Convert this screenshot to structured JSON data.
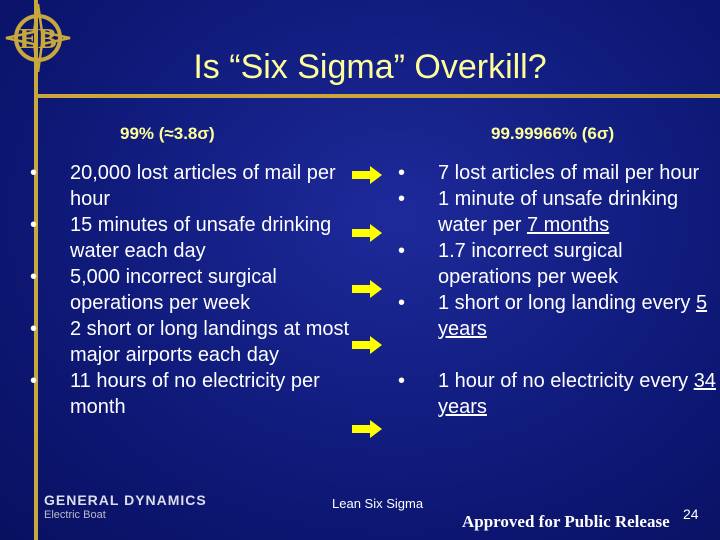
{
  "title": "Is “Six Sigma” Overkill?",
  "left_heading": "99% (≈3.8σ)",
  "right_heading": "99.99966% (6σ)",
  "left_items": [
    "20,000 lost articles of mail per hour",
    "15 minutes of unsafe drinking water each day",
    "5,000 incorrect surgical operations per week",
    "2 short or long landings at most major airports each day",
    "11 hours of no electricity per month"
  ],
  "right_items": [
    {
      "pre": "7 lost articles of mail per hour",
      "u": "",
      "post": ""
    },
    {
      "pre": "1 minute of unsafe drinking water per ",
      "u": "7 months",
      "post": ""
    },
    {
      "pre": "1.7 incorrect surgical operations per week",
      "u": "",
      "post": ""
    },
    {
      "pre": "1 short or long landing every ",
      "u": "5 years",
      "post": ""
    },
    {
      "pre": "1 hour of no electricity every ",
      "u": "34 years",
      "post": ""
    }
  ],
  "bullet_char": "•",
  "footer": {
    "company": "GENERAL DYNAMICS",
    "division": "Electric Boat",
    "center": "Lean Six Sigma",
    "approved": "Approved for Public Release",
    "page": "24"
  },
  "colors": {
    "title": "#ffff99",
    "rule": "#c8a83c",
    "arrow": "#ffff00"
  },
  "icons": [
    "eb-logo-icon",
    "right-arrow-icon"
  ]
}
